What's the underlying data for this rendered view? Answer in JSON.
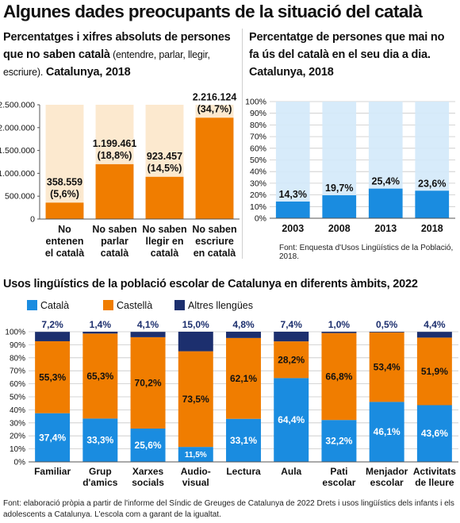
{
  "title": "Algunes dades preocupants de la situació del català",
  "left_chart": {
    "title_bold": "Percentatges i xifres absoluts de persones que no saben català",
    "title_light": " (entendre, parlar, llegir, escriure).",
    "title_tail": " Catalunya, 2018"
  },
  "right_chart": {
    "title": "Percentatge de persones que mai no fa ús del català en el seu dia a dia. Catalunya, 2018",
    "source": "Font: Enquesta d'Usos Lingüístics de la Població, 2018."
  },
  "bottom_chart": {
    "title": "Usos lingüístics de la població escolar de Catalunya en diferents àmbits, 2022"
  },
  "footnote": "Font: elaboració pròpia a partir de l'informe del Síndic de Greuges de Catalunya de 2022 Drets i usos lingüístics dels infants i els adolescents a Catalunya. L'escola com a garant de la igualtat.",
  "colors": {
    "orange": "#F07D00",
    "light_orange": "#FCE9CF",
    "blue": "#1A8CE0",
    "light_blue": "#D3E9FA",
    "navy": "#1C2F6E",
    "grid": "#C8C8C8"
  },
  "chart_data": [
    {
      "type": "bar",
      "categories": [
        "No entenen el català",
        "No saben parlar català",
        "No saben llegir en català",
        "No saben escriure en català"
      ],
      "category_lines": [
        [
          "No",
          "entenen",
          "el català"
        ],
        [
          "No saben",
          "parlar",
          "català"
        ],
        [
          "No saben",
          "llegir en",
          "català"
        ],
        [
          "No saben",
          "escriure",
          "en català"
        ]
      ],
      "values": [
        358559,
        1199461,
        923457,
        2216124
      ],
      "value_labels": [
        "358.559",
        "1.199.461",
        "923.457",
        "2.216.124"
      ],
      "percent_labels": [
        "(5,6%)",
        "(18,8%)",
        "(14,5%)",
        "(34,7%)"
      ],
      "yticks": [
        0,
        500000,
        1000000,
        1500000,
        2000000,
        2500000
      ],
      "ytick_labels": [
        "0",
        "500.000",
        "1.000.000",
        "1.500.000",
        "2.000.000",
        "2.500.000"
      ],
      "ylim": [
        0,
        2500000
      ]
    },
    {
      "type": "bar",
      "categories": [
        "2003",
        "2008",
        "2013",
        "2018"
      ],
      "values": [
        14.3,
        19.7,
        25.4,
        23.6
      ],
      "value_labels": [
        "14,3%",
        "19,7%",
        "25,4%",
        "23,6%"
      ],
      "yticks": [
        0,
        10,
        20,
        30,
        40,
        50,
        60,
        70,
        80,
        90,
        100
      ],
      "ytick_labels": [
        "0%",
        "10%",
        "20%",
        "30%",
        "40%",
        "50%",
        "60%",
        "70%",
        "80%",
        "90%",
        "100%"
      ],
      "ylim": [
        0,
        100
      ],
      "grid": true
    },
    {
      "type": "bar",
      "stacked": true,
      "categories": [
        "Familiar",
        "Grup d'amics",
        "Xarxes socials",
        "Audio-visual",
        "Lectura",
        "Aula",
        "Pati escolar",
        "Menjador escolar",
        "Activitats de lleure"
      ],
      "category_lines": [
        [
          "Familiar"
        ],
        [
          "Grup",
          "d'amics"
        ],
        [
          "Xarxes",
          "socials"
        ],
        [
          "Audio-",
          "visual"
        ],
        [
          "Lectura"
        ],
        [
          "Aula"
        ],
        [
          "Pati",
          "escolar"
        ],
        [
          "Menjador",
          "escolar"
        ],
        [
          "Activitats",
          "de lleure"
        ]
      ],
      "series": [
        {
          "name": "Català",
          "values": [
            37.4,
            33.3,
            25.6,
            11.5,
            33.1,
            64.4,
            32.2,
            46.1,
            43.6
          ],
          "labels": [
            "37,4%",
            "33,3%",
            "25,6%",
            "11,5%",
            "33,1%",
            "64,4%",
            "32,2%",
            "46,1%",
            "43,6%"
          ]
        },
        {
          "name": "Castellà",
          "values": [
            55.3,
            65.3,
            70.2,
            73.5,
            62.1,
            28.2,
            66.8,
            53.4,
            51.9
          ],
          "labels": [
            "55,3%",
            "65,3%",
            "70,2%",
            "73,5%",
            "62,1%",
            "28,2%",
            "66,8%",
            "53,4%",
            "51,9%"
          ]
        },
        {
          "name": "Altres llengües",
          "values": [
            7.2,
            1.4,
            4.1,
            15.0,
            4.8,
            7.4,
            1.0,
            0.5,
            4.4
          ],
          "labels": [
            "7,2%",
            "1,4%",
            "4,1%",
            "15,0%",
            "4,8%",
            "7,4%",
            "1,0%",
            "0,5%",
            "4,4%"
          ]
        }
      ],
      "yticks": [
        0,
        10,
        20,
        30,
        40,
        50,
        60,
        70,
        80,
        90,
        100
      ],
      "ytick_labels": [
        "0%",
        "10%",
        "20%",
        "30%",
        "40%",
        "50%",
        "60%",
        "70%",
        "80%",
        "90%",
        "100%"
      ],
      "ylim": [
        0,
        100
      ],
      "legend_placement": "top-left"
    }
  ]
}
